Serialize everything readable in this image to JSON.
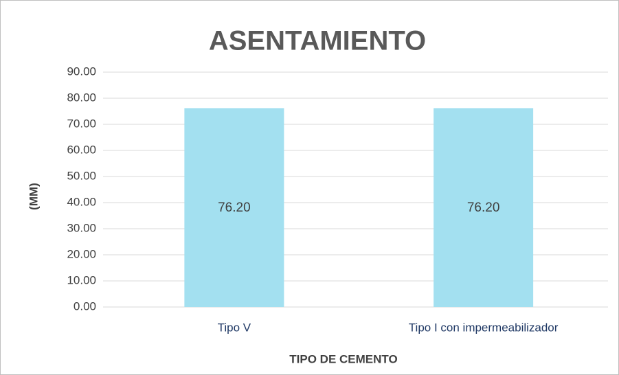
{
  "chart_data": {
    "type": "bar",
    "title": "ASENTAMIENTO",
    "x_label": "TIPO DE CEMENTO",
    "y_label": "(MM)",
    "categories": [
      "Tipo V",
      "Tipo I con impermeabilizador"
    ],
    "values": [
      76.2,
      76.2
    ],
    "value_labels": [
      "76.20",
      "76.20"
    ],
    "color": "#a3e0f0",
    "ylim": [
      0,
      90
    ],
    "yticks": [
      {
        "value": 0,
        "label": "0.00"
      },
      {
        "value": 10,
        "label": "10.00"
      },
      {
        "value": 20,
        "label": "20.00"
      },
      {
        "value": 30,
        "label": "30.00"
      },
      {
        "value": 40,
        "label": "40.00"
      },
      {
        "value": 50,
        "label": "50.00"
      },
      {
        "value": 60,
        "label": "60.00"
      },
      {
        "value": 70,
        "label": "70.00"
      },
      {
        "value": 80,
        "label": "80.00"
      },
      {
        "value": 90,
        "label": "90.00"
      }
    ],
    "grid": true
  }
}
